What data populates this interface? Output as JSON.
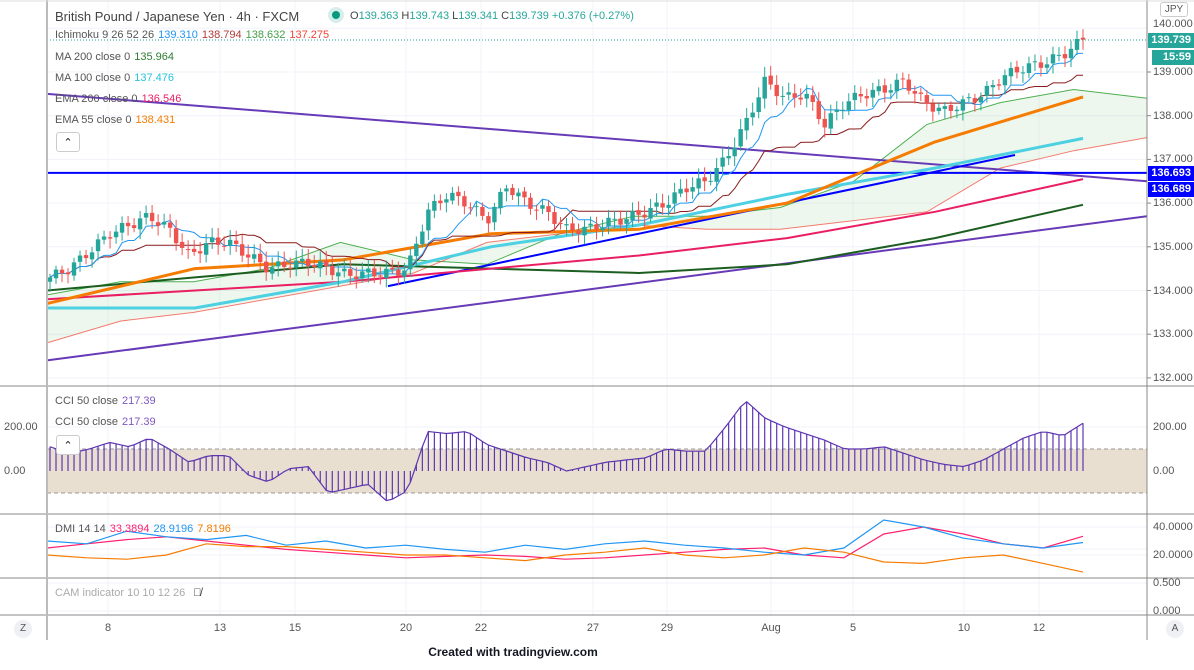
{
  "header": {
    "title": "British Pound / Japanese Yen · 4h · FXCM",
    "ohlc": {
      "o_label": "O",
      "o": "139.363",
      "h_label": "H",
      "h": "139.743",
      "l_label": "L",
      "l": "139.341",
      "c_label": "C",
      "c": "139.739",
      "change": "+0.376 (+0.27%)"
    }
  },
  "legends": {
    "ichimoku": {
      "label": "Ichimoku 9 26 52 26",
      "v1": "139.310",
      "v2": "138.794",
      "v3": "138.632",
      "v4": "137.275"
    },
    "ma200": {
      "label": "MA 200 close 0",
      "value": "135.964"
    },
    "ma100": {
      "label": "MA 100 close 0",
      "value": "137.476"
    },
    "ema200": {
      "label": "EMA 200 close 0",
      "value": "136.546"
    },
    "ema55": {
      "label": "EMA 55 close 0",
      "value": "138.431"
    },
    "cci1": {
      "label": "CCI 50 close",
      "value": "217.39"
    },
    "cci2": {
      "label": "CCI 50 close",
      "value": "217.39"
    },
    "dmi": {
      "label": "DMI 14 14",
      "v1": "33.3894",
      "v2": "28.9196",
      "v3": "7.8196"
    },
    "cam": {
      "label": "CAM indicator 10 10 12 26"
    },
    "collapse_icon": "chevron-up-icon",
    "hidden_icon": "eye-off-icon"
  },
  "price_axis": {
    "currency": "JPY",
    "ticks": [
      "140.000",
      "139.000",
      "138.000",
      "137.000",
      "136.000",
      "135.000",
      "134.000",
      "133.000",
      "132.000"
    ],
    "last_price": "139.739",
    "countdown": "15:59",
    "line_labels": [
      "136.693",
      "136.689"
    ]
  },
  "cci_axis": {
    "ticks": [
      "200.00",
      "0.00"
    ]
  },
  "dmi_axis": {
    "ticks": [
      "40.0000",
      "20.0000"
    ]
  },
  "cam_axis": {
    "ticks": [
      "0.500",
      "0.000"
    ]
  },
  "time_axis": {
    "ticks": [
      "8",
      "13",
      "15",
      "20",
      "22",
      "27",
      "29",
      "Aug",
      "5",
      "10",
      "12"
    ],
    "left_button": "Z",
    "right_button": "A"
  },
  "footer": "Created with tradingview.com",
  "colors": {
    "up": "#26a69a",
    "down": "#ef5350",
    "ma200": "#1b5e20",
    "ma100": "#4dd0e1",
    "ema200": "#e91e63",
    "ema55": "#f57c00",
    "tenkan": "#2196f3",
    "kijun": "#8b1a1a",
    "spanA": "#4caf50",
    "spanB": "#f44336",
    "trend": "#673ab7",
    "hline": "#0000ff",
    "cci": "#5e35b1",
    "cci_band": "#e8dfd0"
  },
  "chart_data": [
    {
      "type": "candlestick",
      "ylim": [
        132,
        140
      ],
      "close_approx": [
        134.3,
        134.5,
        134.9,
        135.3,
        135.5,
        135.7,
        135.4,
        134.8,
        135.1,
        135.1,
        134.8,
        134.5,
        134.6,
        134.65,
        134.5,
        134.35,
        134.4,
        134.4,
        134.5,
        135.8,
        136.2,
        136.0,
        135.6,
        136.4,
        136.0,
        135.8,
        135.4,
        135.4,
        135.55,
        135.65,
        135.8,
        136.0,
        136.35,
        136.5,
        137.0,
        137.8,
        138.8,
        138.4,
        138.5,
        137.8,
        138.3,
        138.5,
        138.6,
        138.8,
        138.3,
        138.1,
        138.3,
        138.5,
        138.9,
        139.1,
        139.2,
        139.4,
        139.739
      ],
      "ma200": [
        134.0,
        134.3,
        134.6,
        134.5,
        134.4,
        134.6,
        135.2,
        135.96
      ],
      "ma100": [
        133.6,
        133.6,
        134.2,
        135.0,
        135.5,
        136.2,
        136.8,
        137.48
      ],
      "ema200": [
        133.8,
        134.0,
        134.2,
        134.5,
        134.8,
        135.2,
        135.8,
        136.55
      ],
      "ema55": [
        133.7,
        134.5,
        134.7,
        135.3,
        135.4,
        136.0,
        137.4,
        138.43
      ],
      "cloud_span_a": [
        133.9,
        134.2,
        134.2,
        134.5,
        135.1,
        134.7,
        134.6,
        135.3,
        135.7,
        135.7,
        135.9,
        136.5,
        137.8,
        138.3,
        138.6,
        138.4
      ],
      "cloud_span_b": [
        132.8,
        133.3,
        133.5,
        133.8,
        134.1,
        134.4,
        135.1,
        135.3,
        135.5,
        135.4,
        135.4,
        135.6,
        135.8,
        136.8,
        137.2,
        137.5
      ],
      "horizontal_line": 136.693,
      "trendlines": [
        {
          "from": 138.5,
          "to": 136.5
        },
        {
          "from": 132.4,
          "to": 135.7
        },
        {
          "from": 134.1,
          "to": 137.1
        }
      ]
    },
    {
      "type": "bar",
      "name": "CCI 50",
      "ylim": [
        -200,
        350
      ],
      "band": [
        -100,
        100
      ],
      "values": [
        110,
        80,
        100,
        130,
        110,
        150,
        100,
        40,
        70,
        70,
        -20,
        -50,
        10,
        20,
        -100,
        -80,
        -60,
        -140,
        -90,
        180,
        170,
        180,
        120,
        90,
        60,
        40,
        0,
        20,
        40,
        50,
        60,
        100,
        90,
        90,
        200,
        320,
        240,
        200,
        170,
        140,
        100,
        100,
        110,
        80,
        50,
        30,
        20,
        50,
        100,
        150,
        180,
        160,
        217.39
      ]
    },
    {
      "type": "line",
      "name": "DMI 14 14",
      "ylim": [
        0,
        45
      ],
      "series": [
        {
          "values": [
            25,
            28,
            31,
            33,
            30,
            27,
            24,
            22,
            20,
            18,
            19,
            20,
            19,
            17,
            18,
            20,
            22,
            24,
            25,
            20,
            18,
            35,
            40,
            35,
            28,
            25,
            33.39
          ]
        },
        {
          "values": [
            30,
            28,
            37,
            33,
            31,
            34,
            27,
            30,
            25,
            27,
            24,
            22,
            27,
            24,
            28,
            30,
            27,
            25,
            22,
            20,
            25,
            45,
            40,
            32,
            28,
            25,
            28.92
          ]
        },
        {
          "values": [
            20,
            18,
            17,
            20,
            28,
            26,
            26,
            24,
            22,
            20,
            20,
            18,
            16,
            20,
            22,
            25,
            20,
            18,
            20,
            25,
            22,
            15,
            14,
            18,
            20,
            14,
            7.82
          ]
        }
      ]
    }
  ]
}
